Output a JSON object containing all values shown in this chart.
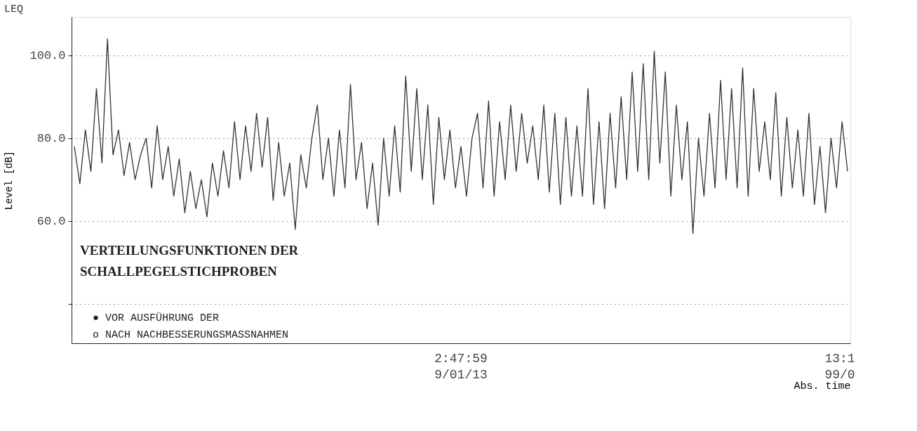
{
  "chart_data": {
    "type": "line",
    "title": "LEQ",
    "ylabel": "Level [dB]",
    "xlabel": "Abs. time",
    "categories": [
      null,
      null,
      null,
      null,
      null,
      null,
      null,
      null,
      null,
      null,
      null,
      null,
      null,
      null,
      null,
      null,
      null,
      null,
      null,
      null,
      null,
      null,
      null,
      null,
      null,
      null,
      null,
      null,
      null,
      null,
      null,
      null,
      null,
      null,
      null,
      null,
      null,
      null,
      null,
      null,
      null,
      null,
      null,
      null,
      null,
      null,
      null,
      null,
      null,
      null,
      null,
      null,
      null,
      null,
      null,
      null,
      null,
      null,
      null,
      null,
      null,
      null,
      null,
      null,
      null,
      null,
      null,
      null,
      null,
      null,
      null,
      null,
      null,
      null,
      null,
      null,
      null,
      null,
      null,
      null,
      null,
      null,
      null,
      null,
      null,
      null,
      null,
      null,
      null,
      null,
      null,
      null,
      null,
      null,
      null,
      null,
      null,
      null,
      null,
      null,
      null,
      null,
      null,
      null,
      null,
      null,
      null,
      null,
      null,
      null,
      null,
      null,
      null,
      null,
      null,
      null,
      null,
      null,
      null,
      null,
      null,
      null,
      null,
      null,
      null,
      null,
      null,
      null,
      null,
      null,
      null,
      null,
      null,
      null,
      null,
      null,
      null,
      null,
      null,
      null,
      null
    ],
    "series": [
      {
        "color": "#333333",
        "values": [
          78,
          69,
          82,
          72,
          92,
          74,
          104,
          76,
          82,
          71,
          79,
          70,
          76,
          80,
          68,
          83,
          70,
          78,
          66,
          75,
          62,
          72,
          63,
          70,
          61,
          74,
          66,
          77,
          68,
          84,
          70,
          83,
          72,
          86,
          73,
          85,
          65,
          79,
          66,
          74,
          58,
          76,
          68,
          80,
          88,
          70,
          80,
          66,
          82,
          68,
          93,
          70,
          79,
          63,
          74,
          59,
          80,
          66,
          83,
          67,
          95,
          72,
          92,
          70,
          88,
          64,
          85,
          70,
          82,
          68,
          78,
          66,
          80,
          86,
          68,
          89,
          66,
          84,
          70,
          88,
          72,
          86,
          74,
          83,
          70,
          88,
          67,
          86,
          64,
          85,
          66,
          83,
          66,
          92,
          64,
          84,
          63,
          86,
          68,
          90,
          70,
          96,
          72,
          98,
          70,
          101,
          74,
          96,
          66,
          88,
          70,
          84,
          57,
          80,
          66,
          86,
          68,
          94,
          70,
          92,
          68,
          97,
          66,
          92,
          72,
          84,
          70,
          91,
          66,
          85,
          68,
          82,
          66,
          86,
          64,
          78,
          62,
          80,
          68,
          84,
          72
        ]
      }
    ],
    "ylim": [
      30.5,
      109.3
    ],
    "yticks": [
      {
        "value": 40,
        "label": null
      },
      {
        "value": 60,
        "label": "60.0"
      },
      {
        "value": 80,
        "label": "80.0"
      },
      {
        "value": 100,
        "label": "100.0"
      }
    ],
    "grid": "y",
    "marker": "none",
    "line_style": "solid",
    "annotations": [
      "VERTEILUNGSFUNKTIONEN DER",
      "SCHALLPEGELSTICHPROBEN",
      "●  VOR       AUSFÜHRUNG DER",
      "o  NACH      NACHBESSERUNGSMASSNAHMEN",
      "2:47:59",
      "9/01/13",
      "13:1",
      "99/0"
    ]
  }
}
